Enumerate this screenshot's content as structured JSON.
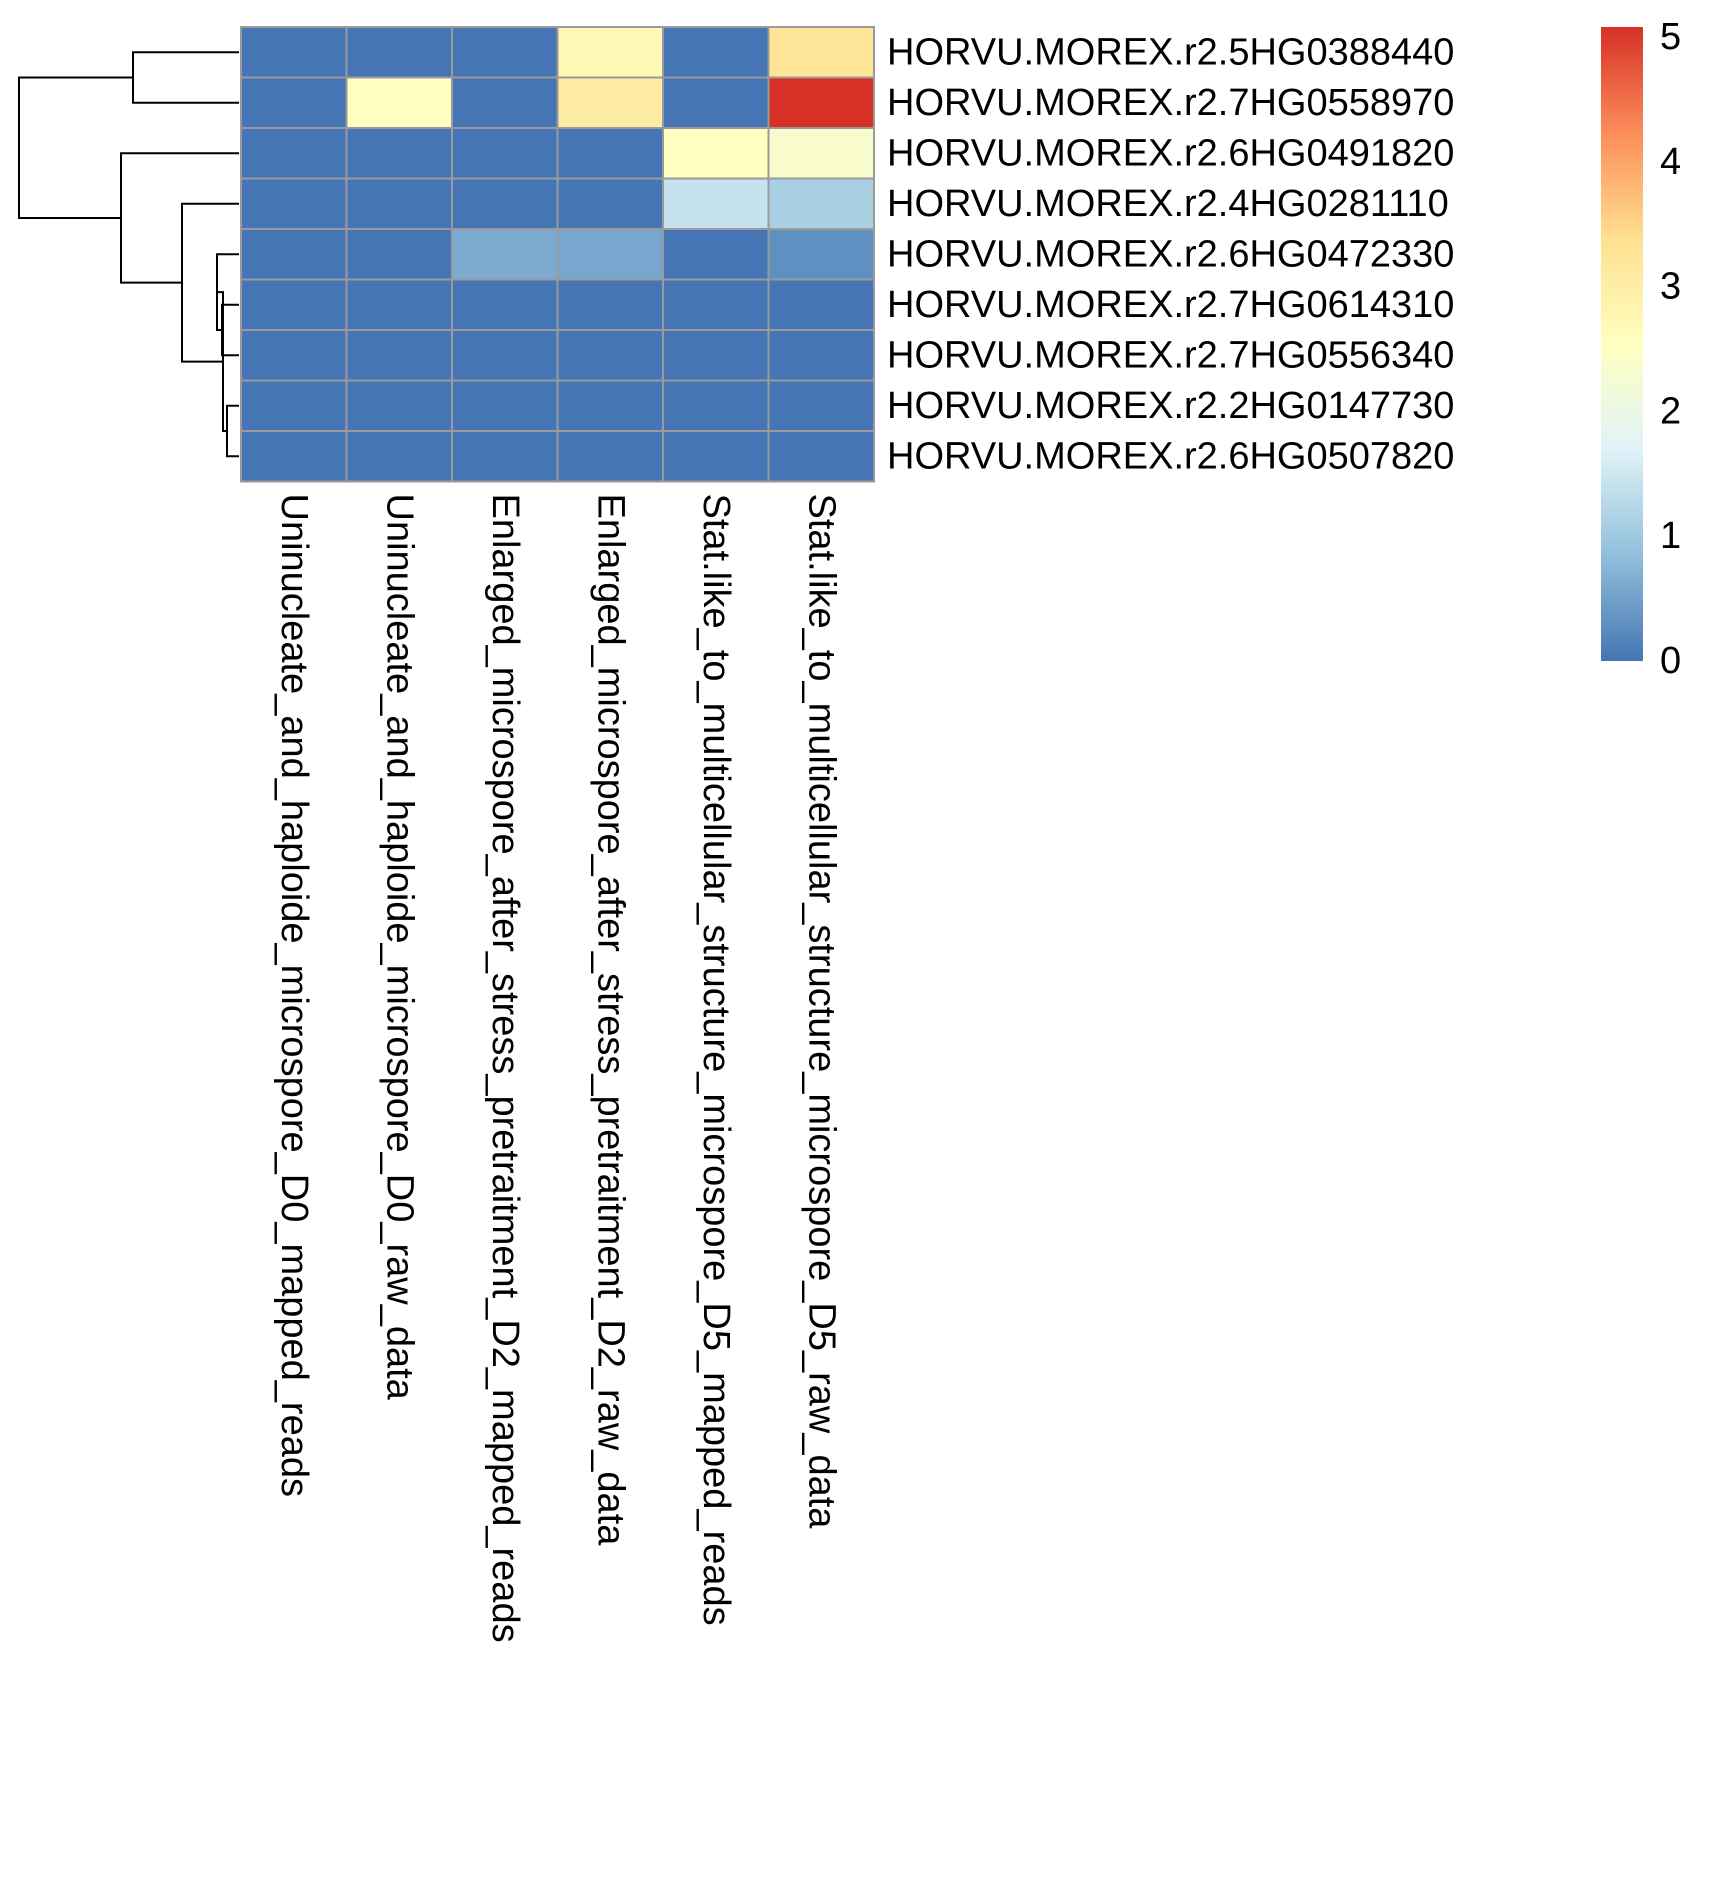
{
  "chart_data": {
    "type": "heatmap",
    "title": "",
    "rows": [
      "HORVU.MOREX.r2.5HG0388440",
      "HORVU.MOREX.r2.7HG0558970",
      "HORVU.MOREX.r2.6HG0491820",
      "HORVU.MOREX.r2.4HG0281110",
      "HORVU.MOREX.r2.6HG0472330",
      "HORVU.MOREX.r2.7HG0614310",
      "HORVU.MOREX.r2.7HG0556340",
      "HORVU.MOREX.r2.2HG0147730",
      "HORVU.MOREX.r2.6HG0507820"
    ],
    "columns": [
      "Uninucleate_and_haploide_microspore_D0_mapped_reads",
      "Uninucleate_and_haploide_microspore_D0_raw_data",
      "Enlarged_microspore_after_stress_pretraitment_D2_mapped_reads",
      "Enlarged_microspore_after_stress_pretraitment_D2_raw_data",
      "Stat.like_to_multicellular_structure_microspore_D5_mapped_reads",
      "Stat.like_to_multicellular_structure_microspore_D5_raw_data"
    ],
    "values": [
      [
        0,
        0,
        0,
        2.7,
        0,
        3.2
      ],
      [
        0,
        2.5,
        0,
        3.0,
        0,
        5.0
      ],
      [
        0,
        0,
        0,
        0,
        2.5,
        2.3
      ],
      [
        0,
        0,
        0,
        0,
        1.4,
        1.1
      ],
      [
        0,
        0,
        0.6,
        0.55,
        0,
        0.3
      ],
      [
        0,
        0,
        0,
        0,
        0,
        0
      ],
      [
        0,
        0,
        0,
        0,
        0,
        0
      ],
      [
        0,
        0,
        0,
        0,
        0,
        0
      ],
      [
        0,
        0,
        0,
        0,
        0,
        0
      ]
    ],
    "color_scale": {
      "min": 0,
      "max": 5,
      "ticks": [
        "0",
        "1",
        "2",
        "3",
        "4",
        "5"
      ],
      "colors": [
        "#4575b4",
        "#91bfdb",
        "#e0f3f8",
        "#ffffbf",
        "#fee090",
        "#fc8d59",
        "#d73027"
      ]
    },
    "legend_placement": "top-right",
    "row_dendrogram": true,
    "column_dendrogram": false
  }
}
